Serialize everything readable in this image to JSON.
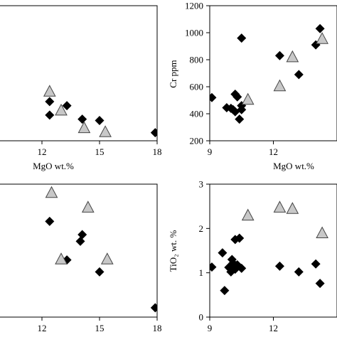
{
  "colors": {
    "diamond_fill": "#000000",
    "triangle_fill": "#c8c8c8",
    "triangle_stroke": "#444444"
  },
  "chart_data": [
    {
      "type": "scatter",
      "panel": "top-left",
      "xlabel": "MgO wt.%",
      "ylabel": "",
      "xlim": [
        9,
        18
      ],
      "ylim": [
        0,
        1
      ],
      "x_ticks": [
        "12",
        "15",
        "18"
      ],
      "y_ticks": [],
      "series": [
        {
          "marker": "diamond",
          "points": [
            [
              12.4,
              0.29
            ],
            [
              13.3,
              0.26
            ],
            [
              14.1,
              0.16
            ],
            [
              15.0,
              0.15
            ],
            [
              17.9,
              0.06
            ],
            [
              12.4,
              0.19
            ]
          ]
        },
        {
          "marker": "triangle",
          "points": [
            [
              12.4,
              0.36
            ],
            [
              13.0,
              0.22
            ],
            [
              14.2,
              0.09
            ],
            [
              15.3,
              0.06
            ]
          ]
        }
      ]
    },
    {
      "type": "scatter",
      "panel": "top-right",
      "xlabel": "MgO wt.%",
      "ylabel": "Cr ppm",
      "xlim": [
        9,
        15
      ],
      "ylim": [
        200,
        1200
      ],
      "x_ticks": [
        "9",
        "12"
      ],
      "y_ticks": [
        "200",
        "400",
        "600",
        "800",
        "1000",
        "1200"
      ],
      "series": [
        {
          "marker": "diamond",
          "points": [
            [
              9.1,
              520
            ],
            [
              9.8,
              445
            ],
            [
              10.0,
              440
            ],
            [
              10.1,
              430
            ],
            [
              10.2,
              545
            ],
            [
              10.2,
              415
            ],
            [
              10.3,
              525
            ],
            [
              10.4,
              360
            ],
            [
              10.5,
              430
            ],
            [
              10.5,
              460
            ],
            [
              10.5,
              960
            ],
            [
              12.3,
              830
            ],
            [
              13.2,
              690
            ],
            [
              14.0,
              910
            ],
            [
              14.2,
              1030
            ]
          ]
        },
        {
          "marker": "triangle",
          "points": [
            [
              10.8,
              500
            ],
            [
              12.3,
              600
            ],
            [
              12.9,
              815
            ],
            [
              14.3,
              950
            ]
          ]
        }
      ]
    },
    {
      "type": "scatter",
      "panel": "bottom-left",
      "xlabel": "",
      "ylabel": "",
      "xlim": [
        9,
        18
      ],
      "ylim": [
        0,
        1
      ],
      "x_ticks": [
        "12",
        "15",
        "18"
      ],
      "y_ticks": [],
      "series": [
        {
          "marker": "diamond",
          "points": [
            [
              12.4,
              0.72
            ],
            [
              13.3,
              0.43
            ],
            [
              14.0,
              0.57
            ],
            [
              14.1,
              0.62
            ],
            [
              15.0,
              0.34
            ],
            [
              17.9,
              0.07
            ]
          ]
        },
        {
          "marker": "triangle",
          "points": [
            [
              12.5,
              0.93
            ],
            [
              13.0,
              0.43
            ],
            [
              14.4,
              0.82
            ],
            [
              15.4,
              0.43
            ]
          ]
        }
      ]
    },
    {
      "type": "scatter",
      "panel": "bottom-right",
      "xlabel": "",
      "ylabel": "TiO₂ wt. %",
      "xlim": [
        9,
        15
      ],
      "ylim": [
        0,
        3
      ],
      "x_ticks": [
        "9",
        "12"
      ],
      "y_ticks": [
        "0",
        "1",
        "2",
        "3"
      ],
      "series": [
        {
          "marker": "diamond",
          "points": [
            [
              9.1,
              1.13
            ],
            [
              9.6,
              1.45
            ],
            [
              9.7,
              0.6
            ],
            [
              9.9,
              1.12
            ],
            [
              10.0,
              1.02
            ],
            [
              10.05,
              1.3
            ],
            [
              10.1,
              1.22
            ],
            [
              10.2,
              1.08
            ],
            [
              10.2,
              1.75
            ],
            [
              10.3,
              1.18
            ],
            [
              10.4,
              1.78
            ],
            [
              10.5,
              1.1
            ],
            [
              12.3,
              1.15
            ],
            [
              13.2,
              1.02
            ],
            [
              14.0,
              1.2
            ],
            [
              14.2,
              0.76
            ]
          ]
        },
        {
          "marker": "triangle",
          "points": [
            [
              10.8,
              2.28
            ],
            [
              12.3,
              2.46
            ],
            [
              12.9,
              2.43
            ],
            [
              14.3,
              1.88
            ]
          ]
        }
      ]
    }
  ]
}
